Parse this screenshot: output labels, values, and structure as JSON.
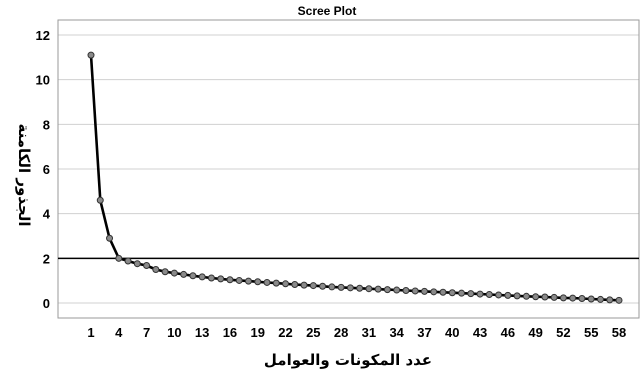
{
  "chart_data": {
    "type": "line",
    "title": "Scree Plot",
    "xlabel": "عدد المكونات والعوامل",
    "ylabel": "الجذور الكامنة",
    "xlim": [
      1,
      58
    ],
    "ylim": [
      0,
      12
    ],
    "y_ticks": [
      "0",
      "2",
      "4",
      "6",
      "8",
      "10",
      "12"
    ],
    "x_ticks": [
      "1",
      "4",
      "7",
      "10",
      "13",
      "16",
      "19",
      "22",
      "25",
      "28",
      "31",
      "34",
      "37",
      "40",
      "43",
      "46",
      "49",
      "52",
      "55",
      "58"
    ],
    "reference_line": 2,
    "grid": true,
    "series": [
      {
        "x": [
          1,
          2,
          3,
          4,
          5,
          6,
          7,
          8,
          9,
          10,
          11,
          12,
          13,
          14,
          15,
          16,
          17,
          18,
          19,
          20,
          21,
          22,
          23,
          24,
          25,
          26,
          27,
          28,
          29,
          30,
          31,
          32,
          33,
          34,
          35,
          36,
          37,
          38,
          39,
          40,
          41,
          42,
          43,
          44,
          45,
          46,
          47,
          48,
          49,
          50,
          51,
          52,
          53,
          54,
          55,
          56,
          57,
          58
        ],
        "values": [
          11.1,
          4.6,
          2.9,
          2.0,
          1.88,
          1.76,
          1.68,
          1.5,
          1.4,
          1.34,
          1.28,
          1.22,
          1.17,
          1.12,
          1.08,
          1.04,
          1.01,
          0.98,
          0.95,
          0.92,
          0.89,
          0.86,
          0.83,
          0.8,
          0.78,
          0.75,
          0.72,
          0.7,
          0.68,
          0.66,
          0.64,
          0.62,
          0.6,
          0.58,
          0.56,
          0.54,
          0.52,
          0.5,
          0.48,
          0.46,
          0.44,
          0.42,
          0.4,
          0.38,
          0.36,
          0.34,
          0.32,
          0.3,
          0.28,
          0.27,
          0.25,
          0.23,
          0.22,
          0.2,
          0.18,
          0.16,
          0.14,
          0.12
        ]
      }
    ]
  }
}
